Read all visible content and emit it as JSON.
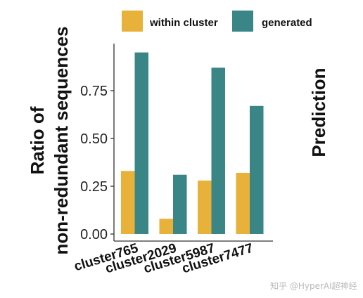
{
  "chart_data": {
    "type": "bar",
    "ylabel_line1": "Ratio of",
    "ylabel_line2": "non-redundant sequences",
    "xlabel": "",
    "categories": [
      "cluster765",
      "cluster2029",
      "cluster5987",
      "cluster7477"
    ],
    "series": [
      {
        "name": "within cluster",
        "color": "#E8B23A",
        "values": [
          0.33,
          0.08,
          0.28,
          0.32
        ]
      },
      {
        "name": "generated",
        "color": "#3A8585",
        "values": [
          0.95,
          0.31,
          0.87,
          0.67
        ]
      }
    ],
    "ylim": [
      0,
      0.97
    ],
    "yticks": [
      0.0,
      0.25,
      0.5,
      0.75
    ],
    "ytick_labels": [
      "0.00",
      "0.25",
      "0.50",
      "0.75"
    ],
    "grid": false,
    "legend_position": "top"
  },
  "neighbor_panel_title": "Prediction",
  "watermark": "知乎 @HyperAI超神经"
}
